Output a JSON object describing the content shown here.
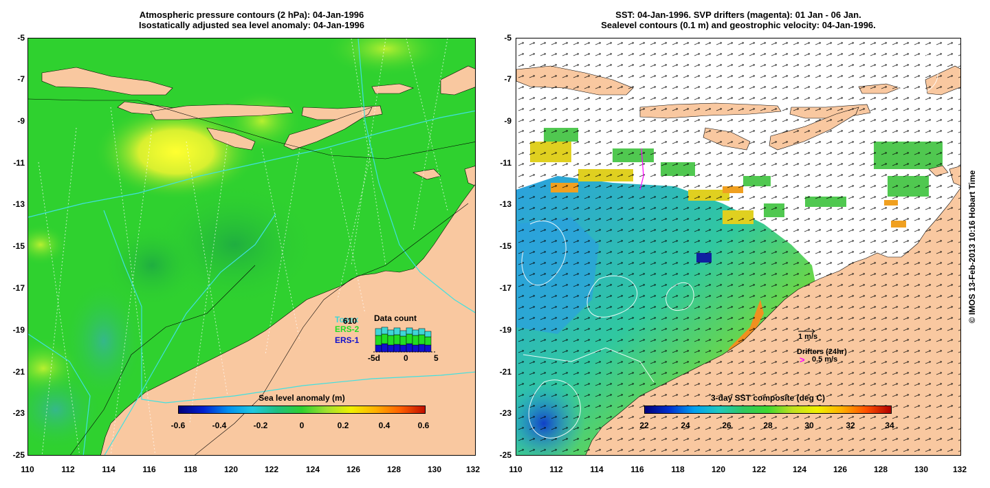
{
  "left_panel": {
    "title_line1": "Atmospheric pressure contours (2 hPa): 04-Jan-1996",
    "title_line2": "Isostatically adjusted sea level anomaly: 04-Jan-1996",
    "legend": {
      "t_label": "T",
      "count_value": "610",
      "ers2_label": "ERS-2",
      "ers1_label": "ERS-1",
      "data_count_title": "Data count",
      "axis_ticks": [
        "-5d",
        "0",
        "5"
      ],
      "colors": {
        "t": "#3ed6d6",
        "ers2": "#22dd22",
        "ers1": "#1010cc"
      }
    },
    "colorbar": {
      "title": "Sea level anomaly (m)",
      "ticks": [
        "-0.6",
        "-0.4",
        "-0.2",
        "0",
        "0.2",
        "0.4",
        "0.6"
      ]
    }
  },
  "right_panel": {
    "title_line1": "SST: 04-Jan-1996. SVP drifters (magenta): 01 Jan - 06 Jan.",
    "title_line2": "Sealevel contours (0.1 m) and geostrophic velocity: 04-Jan-1996.",
    "velocity_scale_label": "1 m/s",
    "drifters_label": "Drifters (24hr)",
    "drifter_marker": ">",
    "drifter_scale_label": "0.5 m/s",
    "drifter_color": "#ff00ff",
    "colorbar": {
      "title": "3-day SST composite (deg C)",
      "ticks": [
        "22",
        "24",
        "26",
        "28",
        "30",
        "32",
        "34"
      ]
    }
  },
  "axes": {
    "lat_ticks": [
      "-5",
      "-7",
      "-9",
      "-11",
      "-13",
      "-15",
      "-17",
      "-19",
      "-21",
      "-23",
      "-25"
    ],
    "lon_ticks": [
      "110",
      "112",
      "114",
      "116",
      "118",
      "120",
      "122",
      "124",
      "126",
      "128",
      "130",
      "132"
    ]
  },
  "credit": "© IMOS 13-Feb-2013 10:16 Hobart Time",
  "colors": {
    "land": "#f9c8a0",
    "ocean_anomaly_base": "#2fd12f",
    "track_line": "#40e0e0"
  }
}
